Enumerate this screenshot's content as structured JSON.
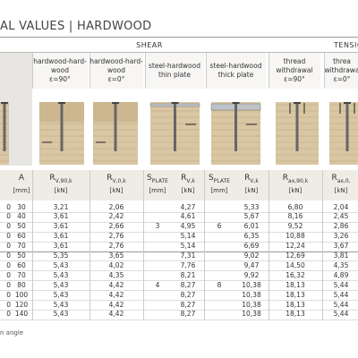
{
  "title": "AL VALUES | HARDWOOD",
  "group_headers": {
    "shear": "SHEAR",
    "tension": "TENSIO"
  },
  "column_headers": [
    [
      "hardwood-hard-",
      "wood",
      "ε=90°"
    ],
    [
      "hardwood-hard-",
      "wood",
      "ε=0°"
    ],
    [
      "steel-hardwood",
      "thin plate"
    ],
    [
      "steel-hardwood",
      "thick plate"
    ],
    [
      "thread",
      "withdrawal",
      "ε=90°"
    ],
    [
      "threa",
      "withdrawa",
      "ε=0°"
    ]
  ],
  "unit_headers": [
    null,
    {
      "symbol": "A",
      "unit": "[mm]"
    },
    {
      "symbol": "R",
      "sub": "V,90,k",
      "unit": "[kN]"
    },
    {
      "symbol": "R",
      "sub": "V,0,k",
      "unit": "[kN]"
    },
    {
      "symbol": "S",
      "sub": "PLATE",
      "unit": "[mm]"
    },
    {
      "symbol": "R",
      "sub": "V,k",
      "unit": "[kN]"
    },
    {
      "symbol": "S",
      "sub": "PLATE",
      "unit": "[mm]"
    },
    {
      "symbol": "R",
      "sub": "V,k",
      "unit": "[kN]"
    },
    {
      "symbol": "R",
      "sub": "ax,90,k",
      "unit": "[kN]"
    },
    {
      "symbol": "R",
      "sub": "ax,0,",
      "unit": "[kN]"
    }
  ],
  "rows": [
    [
      "0",
      "30",
      "3,21",
      "2,06",
      null,
      "4,27",
      null,
      "5,33",
      "6,80",
      "2,04"
    ],
    [
      "0",
      "40",
      "3,61",
      "2,42",
      null,
      "4,61",
      null,
      "5,67",
      "8,16",
      "2,45"
    ],
    [
      "0",
      "50",
      "3,61",
      "2,66",
      "3",
      "4,95",
      "6",
      "6,01",
      "9,52",
      "2,86"
    ],
    [
      "0",
      "60",
      "3,61",
      "2,76",
      null,
      "5,14",
      null,
      "6,35",
      "10,88",
      "3,26"
    ],
    [
      "0",
      "70",
      "3,61",
      "2,76",
      null,
      "5,14",
      null,
      "6,69",
      "12,24",
      "3,67"
    ],
    [
      "0",
      "50",
      "5,35",
      "3,65",
      null,
      "7,31",
      null,
      "9,02",
      "12,69",
      "3,81"
    ],
    [
      "0",
      "60",
      "5,43",
      "4,02",
      null,
      "7,76",
      null,
      "9,47",
      "14,50",
      "4,35"
    ],
    [
      "0",
      "70",
      "5,43",
      "4,35",
      null,
      "8,21",
      null,
      "9,92",
      "16,32",
      "4,89"
    ],
    [
      "0",
      "80",
      "5,43",
      "4,42",
      "4",
      "8,27",
      "8",
      "10,38",
      "18,13",
      "5,44"
    ],
    [
      "0",
      "100",
      "5,43",
      "4,42",
      null,
      "8,27",
      null,
      "10,38",
      "18,13",
      "5,44"
    ],
    [
      "0",
      "120",
      "5,43",
      "4,42",
      null,
      "8,27",
      null,
      "10,38",
      "18,13",
      "5,44"
    ],
    [
      "0",
      "140",
      "5,43",
      "4,42",
      null,
      "8,27",
      null,
      "10,38",
      "18,13",
      "5,44"
    ]
  ],
  "footnote": "n angle"
}
